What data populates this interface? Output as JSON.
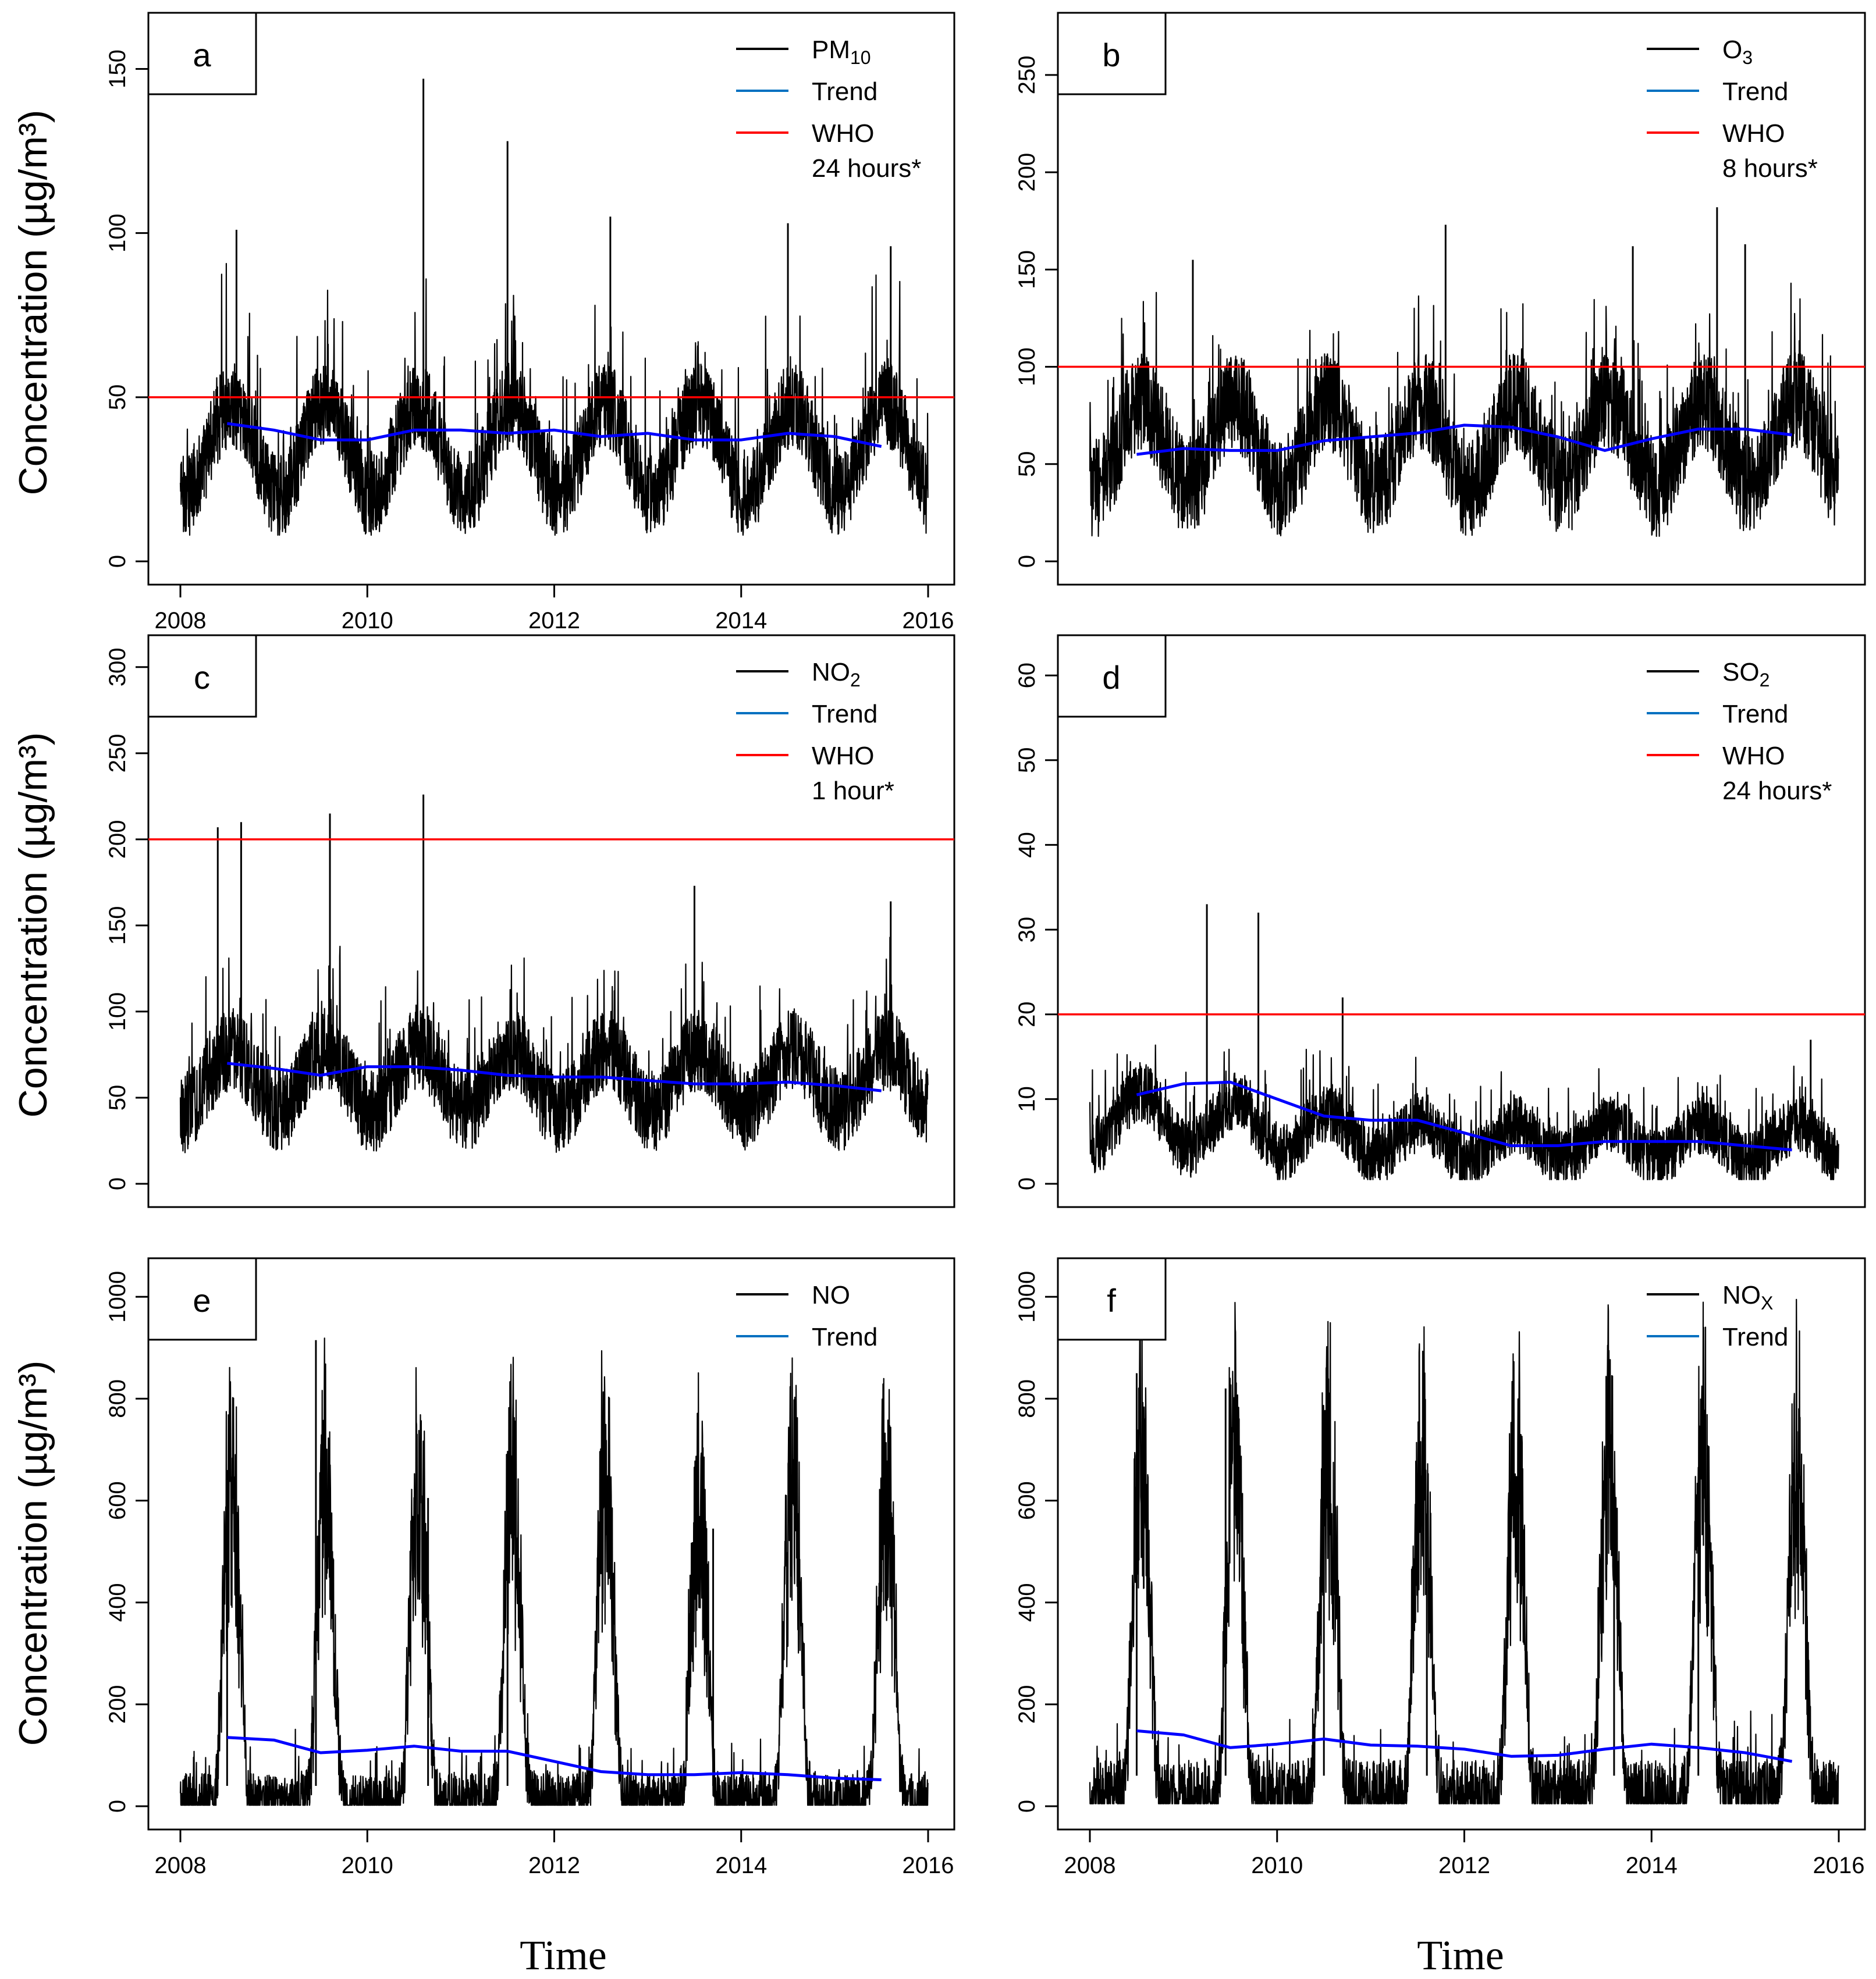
{
  "x_axis_label": "Time",
  "y_axis_label": "Concentration (µg/m³)",
  "chart_data": [
    {
      "panel": "a",
      "type": "line",
      "x_ticks": [
        "2008",
        "2010",
        "2012",
        "2014",
        "2016"
      ],
      "xlim": [
        2008,
        2016
      ],
      "ylim": [
        0,
        160
      ],
      "y_ticks": [
        0,
        50,
        100,
        150
      ],
      "legend": [
        "PM",
        "Trend",
        "WHO",
        "24 hours*"
      ],
      "legend_sub": "10",
      "series": [
        {
          "name": "PM10",
          "color": "#000000",
          "base": 34,
          "amp": 14,
          "noise": 13,
          "peakMult": 2.5,
          "min": 8,
          "spikes": [
            [
              2008.6,
              101
            ],
            [
              2010.6,
              147
            ],
            [
              2011.5,
              128
            ],
            [
              2012.6,
              105
            ],
            [
              2014.5,
              103
            ],
            [
              2015.6,
              96
            ]
          ]
        },
        {
          "name": "Trend",
          "color": "#0000ff",
          "x": [
            2008.5,
            2009.0,
            2009.5,
            2010.0,
            2010.5,
            2011.0,
            2011.5,
            2012.0,
            2012.5,
            2013.0,
            2013.5,
            2014.0,
            2014.5,
            2015.0,
            2015.5
          ],
          "y": [
            42,
            40,
            37,
            37,
            40,
            40,
            39,
            40,
            38,
            39,
            37,
            37,
            39,
            38,
            35
          ]
        },
        {
          "name": "WHO",
          "color": "#ff0000",
          "hline": 50
        }
      ]
    },
    {
      "panel": "b",
      "type": "line",
      "x_ticks": [],
      "xlim": [
        2008,
        2016
      ],
      "ylim": [
        0,
        270
      ],
      "y_ticks": [
        0,
        50,
        100,
        150,
        200,
        250
      ],
      "legend": [
        "O",
        "Trend",
        "WHO",
        "8 hours*"
      ],
      "legend_sub": "3",
      "series": [
        {
          "name": "O3",
          "color": "#000000",
          "base": 60,
          "amp": 22,
          "noise": 26,
          "peakMult": 1.8,
          "min": 5,
          "spikes": [
            [
              2009.1,
              155
            ],
            [
              2011.8,
              173
            ],
            [
              2013.8,
              162
            ],
            [
              2014.7,
              182
            ],
            [
              2015.0,
              163
            ]
          ]
        },
        {
          "name": "Trend",
          "color": "#0000ff",
          "x": [
            2008.5,
            2009.0,
            2009.5,
            2010.0,
            2010.5,
            2011.0,
            2011.5,
            2012.0,
            2012.5,
            2013.0,
            2013.5,
            2014.0,
            2014.5,
            2015.0,
            2015.5
          ],
          "y": [
            55,
            58,
            57,
            57,
            62,
            64,
            66,
            70,
            69,
            64,
            57,
            63,
            68,
            68,
            65
          ]
        },
        {
          "name": "WHO",
          "color": "#ff0000",
          "hline": 100
        }
      ]
    },
    {
      "panel": "c",
      "type": "line",
      "x_ticks": [],
      "xlim": [
        2008,
        2016
      ],
      "ylim": [
        0,
        305
      ],
      "y_ticks": [
        0,
        50,
        100,
        150,
        200,
        250,
        300
      ],
      "legend": [
        "NO",
        "Trend",
        "WHO",
        "1 hour*"
      ],
      "legend_sub": "2",
      "series": [
        {
          "name": "NO2",
          "color": "#000000",
          "base": 60,
          "amp": 18,
          "noise": 24,
          "peakMult": 2.0,
          "min": 15,
          "spikes": [
            [
              2008.4,
              207
            ],
            [
              2008.65,
              210
            ],
            [
              2009.6,
              215
            ],
            [
              2010.6,
              226
            ],
            [
              2013.5,
              173
            ],
            [
              2015.6,
              164
            ]
          ]
        },
        {
          "name": "Trend",
          "color": "#0000ff",
          "x": [
            2008.5,
            2009.0,
            2009.5,
            2010.0,
            2010.5,
            2011.0,
            2011.5,
            2012.0,
            2012.5,
            2013.0,
            2013.5,
            2014.0,
            2014.5,
            2015.0,
            2015.5
          ],
          "y": [
            70,
            67,
            63,
            68,
            68,
            66,
            63,
            62,
            62,
            60,
            58,
            58,
            59,
            57,
            54
          ]
        },
        {
          "name": "WHO",
          "color": "#ff0000",
          "hline": 200
        }
      ]
    },
    {
      "panel": "d",
      "type": "line",
      "x_ticks": [],
      "xlim": [
        2008,
        2016
      ],
      "ylim": [
        0,
        62
      ],
      "y_ticks": [
        0,
        10,
        20,
        30,
        40,
        50,
        60
      ],
      "legend": [
        "SO",
        "Trend",
        "WHO",
        "24 hours*"
      ],
      "legend_sub": "2",
      "series": [
        {
          "name": "SO2",
          "color": "#000000",
          "base": 7,
          "amp": 3,
          "noise": 3.5,
          "peakMult": 2.0,
          "min": 0.5,
          "decay": true,
          "spikes": [
            [
              2009.25,
              33
            ],
            [
              2009.8,
              32
            ],
            [
              2010.7,
              22
            ],
            [
              2015.7,
              17
            ]
          ]
        },
        {
          "name": "Trend",
          "color": "#0000ff",
          "x": [
            2008.5,
            2009.0,
            2009.5,
            2010.0,
            2010.5,
            2011.0,
            2011.5,
            2012.0,
            2012.5,
            2013.0,
            2013.5,
            2014.0,
            2014.5,
            2015.0,
            2015.5
          ],
          "y": [
            10.5,
            11.8,
            12,
            10,
            8,
            7.5,
            7.5,
            6,
            4.5,
            4.5,
            5,
            5,
            5,
            4.5,
            4
          ]
        },
        {
          "name": "WHO",
          "color": "#ff0000",
          "hline": 20
        }
      ]
    },
    {
      "panel": "e",
      "type": "line",
      "x_ticks": [
        "2008",
        "2010",
        "2012",
        "2014",
        "2016"
      ],
      "xlim": [
        2008,
        2016
      ],
      "ylim": [
        0,
        1030
      ],
      "y_ticks": [
        0,
        200,
        400,
        600,
        800,
        1000
      ],
      "legend": [
        "NO",
        "Trend"
      ],
      "legend_sub": "",
      "series": [
        {
          "name": "NO",
          "color": "#000000",
          "base": 40,
          "amp": 180,
          "noise": 60,
          "peakMult": 1.6,
          "min": 2,
          "seasonal": true,
          "spikes": [
            [
              2008.5,
              660
            ],
            [
              2009.45,
              915
            ],
            [
              2010.65,
              605
            ],
            [
              2011.5,
              510
            ],
            [
              2013.7,
              545
            ]
          ]
        },
        {
          "name": "Trend",
          "color": "#0000ff",
          "x": [
            2008.5,
            2009.0,
            2009.5,
            2010.0,
            2010.5,
            2011.0,
            2011.5,
            2012.0,
            2012.5,
            2013.0,
            2013.5,
            2014.0,
            2014.5,
            2015.0,
            2015.5
          ],
          "y": [
            135,
            130,
            105,
            110,
            118,
            108,
            108,
            88,
            68,
            62,
            62,
            66,
            62,
            55,
            52
          ]
        }
      ]
    },
    {
      "panel": "f",
      "type": "line",
      "x_ticks": [
        "2008",
        "2010",
        "2012",
        "2014",
        "2016"
      ],
      "xlim": [
        2008,
        2016
      ],
      "ylim": [
        0,
        1030
      ],
      "y_ticks": [
        0,
        200,
        400,
        600,
        800,
        1000
      ],
      "legend": [
        "NO",
        "Trend"
      ],
      "legend_sub": "X",
      "series": [
        {
          "name": "NOX",
          "color": "#000000",
          "base": 60,
          "amp": 200,
          "noise": 70,
          "peakMult": 1.5,
          "min": 5,
          "seasonal": true,
          "spikes": [
            [
              2008.5,
              850
            ],
            [
              2009.45,
              820
            ],
            [
              2010.5,
              690
            ],
            [
              2011.6,
              560
            ],
            [
              2014.5,
              565
            ],
            [
              2013.6,
              555
            ]
          ]
        },
        {
          "name": "Trend",
          "color": "#0000ff",
          "x": [
            2008.5,
            2009.0,
            2009.5,
            2010.0,
            2010.5,
            2011.0,
            2011.5,
            2012.0,
            2012.5,
            2013.0,
            2013.5,
            2014.0,
            2014.5,
            2015.0,
            2015.5
          ],
          "y": [
            148,
            140,
            115,
            122,
            132,
            120,
            118,
            112,
            98,
            100,
            112,
            122,
            115,
            105,
            88
          ]
        }
      ]
    }
  ]
}
